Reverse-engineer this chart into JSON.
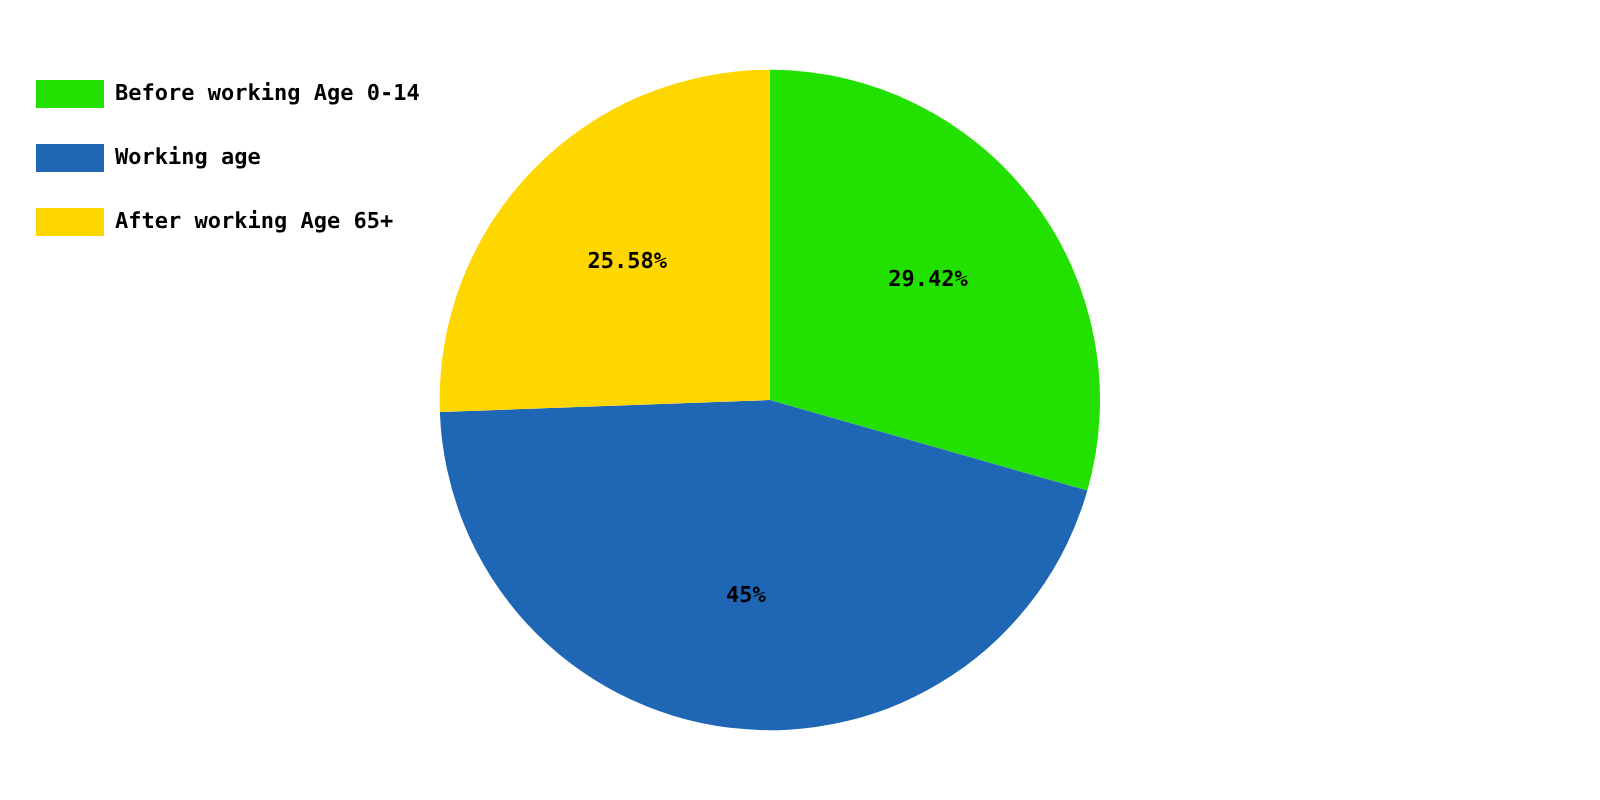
{
  "chart_data": {
    "type": "pie",
    "categories": [
      "Before working Age 0-14",
      "Working age",
      "After working Age 65+"
    ],
    "values": [
      29.42,
      45,
      25.58
    ],
    "colors": [
      "#22e000",
      "#1f66b4",
      "#ffd700"
    ],
    "value_labels": [
      "29.42%",
      "45%",
      "25.58%"
    ],
    "legend": "top left"
  }
}
